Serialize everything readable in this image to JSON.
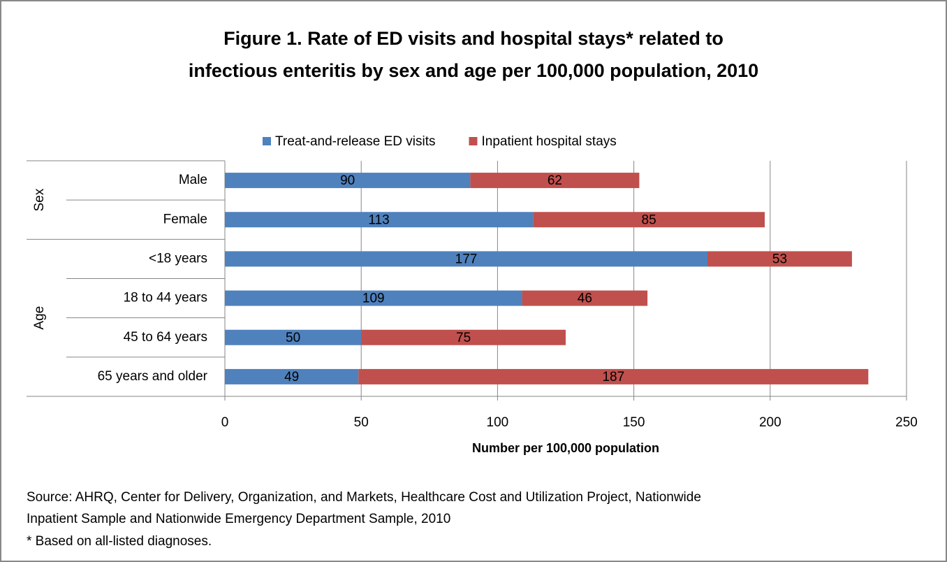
{
  "chart_data": {
    "type": "bar",
    "orientation": "horizontal",
    "stacked": true,
    "title": [
      "Figure 1. Rate of ED visits and hospital stays* related to",
      "infectious enteritis by sex and age per 100,000 population, 2010"
    ],
    "groups": [
      {
        "name": "Sex",
        "categories": [
          "Male",
          "Female"
        ]
      },
      {
        "name": "Age",
        "categories": [
          "<18 years",
          "18 to 44 years",
          "45 to 64 years",
          "65 years and older"
        ]
      }
    ],
    "series": [
      {
        "name": "Treat-and-release ED visits",
        "color": "#4f81bd",
        "values": [
          90,
          113,
          177,
          109,
          50,
          49
        ]
      },
      {
        "name": "Inpatient hospital stays",
        "color": "#c0504d",
        "values": [
          62,
          85,
          53,
          46,
          75,
          187
        ]
      }
    ],
    "xlim": [
      0,
      250
    ],
    "xticks": [
      0,
      50,
      100,
      150,
      200,
      250
    ],
    "grid": true,
    "x_label": "Number per 100,000 population",
    "legend": "top",
    "notes": [
      "Source: AHRQ, Center for Delivery, Organization, and Markets, Healthcare Cost and Utilization Project, Nationwide",
      "Inpatient Sample and Nationwide Emergency Department Sample, 2010",
      "* Based on all-listed diagnoses."
    ]
  }
}
